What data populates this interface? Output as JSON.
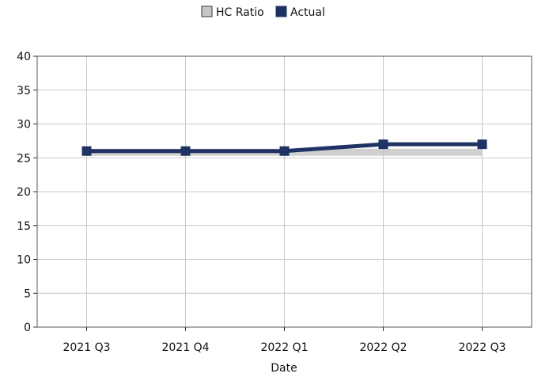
{
  "chart_data": {
    "type": "line",
    "title": "",
    "xlabel": "Date",
    "ylabel": "",
    "categories": [
      "2021 Q3",
      "2021 Q4",
      "2022 Q1",
      "2022 Q2",
      "2022 Q3"
    ],
    "ylim": [
      0,
      40
    ],
    "yticks": [
      0,
      5,
      10,
      15,
      20,
      25,
      30,
      35,
      40
    ],
    "grid": true,
    "legend_position": "top-center",
    "series": [
      {
        "name": "HC Ratio",
        "values": [
          26,
          26,
          26,
          26,
          26
        ],
        "color": "#c8c8c8",
        "style": "area"
      },
      {
        "name": "Actual",
        "values": [
          26,
          26,
          26,
          27,
          27
        ],
        "color": "#1f3264",
        "style": "line",
        "marker": "square"
      }
    ]
  }
}
